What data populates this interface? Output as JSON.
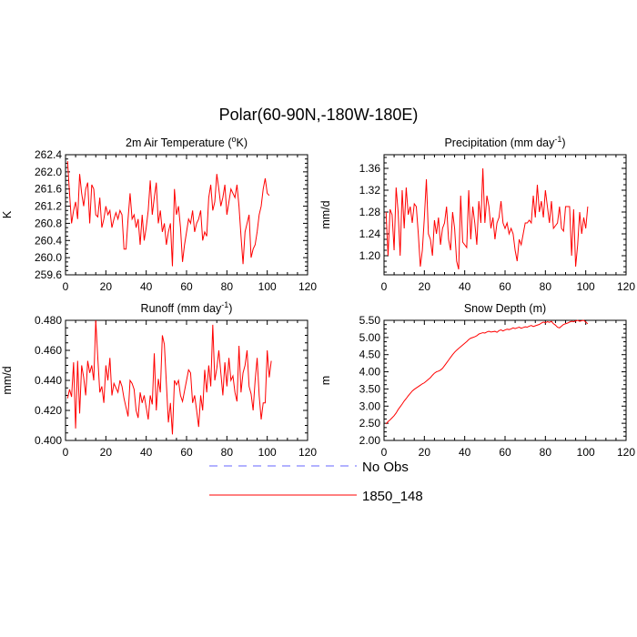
{
  "title": "Polar(60-90N,-180W-180E)",
  "legend": [
    {
      "label": "No Obs",
      "color": "#6666ff",
      "dashed": true
    },
    {
      "label": "1850_148",
      "color": "#ff0000",
      "dashed": false
    }
  ],
  "chart_data": [
    {
      "type": "line",
      "title": "2m Air Temperature (",
      "title_sup": "o",
      "title_tail": "K)",
      "ylabel": "K",
      "xlim": [
        0,
        120
      ],
      "ylim": [
        259.6,
        262.4
      ],
      "xticks": [
        "0",
        "20",
        "40",
        "60",
        "80",
        "100",
        "120"
      ],
      "yticks": [
        "259.6",
        "260.0",
        "260.4",
        "260.8",
        "261.2",
        "261.6",
        "262.0",
        "262.4"
      ],
      "series": [
        {
          "name": "1850_148",
          "color": "#ff0000",
          "x_start": 1,
          "values": [
            262.25,
            261.5,
            260.8,
            261.1,
            261.3,
            260.9,
            261.95,
            261.5,
            261.2,
            261.6,
            261.75,
            260.8,
            261.7,
            261.6,
            261.0,
            260.95,
            261.4,
            260.7,
            260.9,
            261.2,
            261.0,
            261.1,
            260.7,
            260.9,
            261.05,
            260.9,
            261.1,
            261.0,
            260.2,
            260.2,
            260.9,
            261.5,
            260.9,
            261.0,
            260.7,
            260.9,
            260.3,
            261.0,
            260.4,
            260.7,
            261.1,
            261.8,
            261.0,
            261.4,
            261.75,
            260.8,
            261.1,
            260.6,
            260.8,
            260.3,
            260.6,
            260.8,
            259.8,
            261.6,
            261.0,
            261.2,
            260.7,
            259.9,
            260.3,
            260.6,
            260.9,
            260.8,
            261.1,
            260.6,
            260.8,
            260.9,
            261.1,
            260.4,
            260.6,
            260.5,
            261.4,
            261.7,
            261.1,
            261.3,
            261.95,
            261.6,
            261.2,
            261.4,
            261.7,
            261.0,
            261.3,
            261.6,
            261.5,
            261.4,
            261.7,
            261.2,
            260.5,
            259.85,
            260.6,
            260.8,
            261.0,
            260.0,
            260.2,
            260.3,
            260.6,
            261.0,
            261.2,
            261.6,
            261.85,
            261.5,
            261.45
          ]
        }
      ]
    },
    {
      "type": "line",
      "title": "Precipitation (mm day",
      "title_sup": "-1",
      "title_tail": ")",
      "ylabel": "mm/d",
      "xlim": [
        0,
        120
      ],
      "ylim": [
        1.165,
        1.385
      ],
      "xticks": [
        "0",
        "20",
        "40",
        "60",
        "80",
        "100",
        "120"
      ],
      "ytick_values": [
        1.2,
        1.24,
        1.28,
        1.32,
        1.36
      ],
      "yticks": [
        "1.20",
        "1.24",
        "1.28",
        "1.32",
        "1.36"
      ],
      "series": [
        {
          "name": "1850_148",
          "color": "#ff0000",
          "x_start": 1,
          "values": [
            1.28,
            1.2,
            1.285,
            1.275,
            1.21,
            1.325,
            1.28,
            1.2,
            1.32,
            1.25,
            1.325,
            1.275,
            1.29,
            1.26,
            1.295,
            1.29,
            1.24,
            1.18,
            1.21,
            1.27,
            1.34,
            1.24,
            1.23,
            1.2,
            1.265,
            1.24,
            1.27,
            1.22,
            1.25,
            1.26,
            1.29,
            1.23,
            1.21,
            1.28,
            1.25,
            1.19,
            1.175,
            1.31,
            1.225,
            1.22,
            1.215,
            1.32,
            1.23,
            1.29,
            1.26,
            1.22,
            1.3,
            1.26,
            1.36,
            1.26,
            1.31,
            1.29,
            1.25,
            1.27,
            1.23,
            1.26,
            1.27,
            1.3,
            1.26,
            1.25,
            1.26,
            1.24,
            1.25,
            1.24,
            1.21,
            1.19,
            1.23,
            1.22,
            1.24,
            1.26,
            1.26,
            1.265,
            1.26,
            1.31,
            1.27,
            1.33,
            1.28,
            1.3,
            1.27,
            1.32,
            1.29,
            1.26,
            1.3,
            1.25,
            1.255,
            1.26,
            1.29,
            1.25,
            1.245,
            1.29,
            1.29,
            1.29,
            1.2,
            1.285,
            1.18,
            1.22,
            1.28,
            1.24,
            1.27,
            1.25,
            1.29
          ]
        }
      ]
    },
    {
      "type": "line",
      "title": "Runoff (mm day",
      "title_sup": "-1",
      "title_tail": ")",
      "ylabel": "mm/d",
      "xlim": [
        0,
        120
      ],
      "ylim": [
        0.4,
        0.48
      ],
      "xticks": [
        "0",
        "20",
        "40",
        "60",
        "80",
        "100",
        "120"
      ],
      "yticks": [
        "0.400",
        "0.420",
        "0.440",
        "0.460",
        "0.480"
      ],
      "series": [
        {
          "name": "1850_148",
          "color": "#ff0000",
          "x_start": 1,
          "values": [
            0.428,
            0.434,
            0.429,
            0.452,
            0.408,
            0.453,
            0.418,
            0.45,
            0.442,
            0.43,
            0.453,
            0.445,
            0.45,
            0.44,
            0.48,
            0.455,
            0.432,
            0.436,
            0.425,
            0.45,
            0.44,
            0.455,
            0.43,
            0.438,
            0.435,
            0.432,
            0.44,
            0.436,
            0.428,
            0.422,
            0.416,
            0.44,
            0.438,
            0.434,
            0.42,
            0.415,
            0.432,
            0.425,
            0.43,
            0.422,
            0.414,
            0.43,
            0.424,
            0.458,
            0.42,
            0.441,
            0.432,
            0.47,
            0.464,
            0.438,
            0.412,
            0.425,
            0.404,
            0.44,
            0.437,
            0.44,
            0.43,
            0.426,
            0.433,
            0.44,
            0.447,
            0.445,
            0.425,
            0.43,
            0.42,
            0.409,
            0.43,
            0.42,
            0.447,
            0.432,
            0.45,
            0.436,
            0.477,
            0.44,
            0.448,
            0.46,
            0.445,
            0.43,
            0.452,
            0.436,
            0.455,
            0.44,
            0.443,
            0.432,
            0.426,
            0.463,
            0.432,
            0.445,
            0.45,
            0.46,
            0.436,
            0.431,
            0.42,
            0.44,
            0.455,
            0.43,
            0.414,
            0.425,
            0.425,
            0.46,
            0.442,
            0.453
          ]
        }
      ]
    },
    {
      "type": "line",
      "title": "Snow Depth (m)",
      "title_sup": "",
      "title_tail": "",
      "ylabel": "m",
      "xlim": [
        0,
        120
      ],
      "ylim": [
        2.0,
        5.5
      ],
      "xticks": [
        "0",
        "20",
        "40",
        "60",
        "80",
        "100",
        "120"
      ],
      "yticks": [
        "2.00",
        "2.50",
        "3.00",
        "3.50",
        "4.00",
        "4.50",
        "5.00",
        "5.50"
      ],
      "series": [
        {
          "name": "1850_148",
          "color": "#ff0000",
          "x_start": 1,
          "values": [
            2.48,
            2.55,
            2.6,
            2.66,
            2.72,
            2.8,
            2.9,
            2.98,
            3.06,
            3.15,
            3.22,
            3.3,
            3.37,
            3.44,
            3.49,
            3.53,
            3.57,
            3.61,
            3.65,
            3.68,
            3.73,
            3.78,
            3.83,
            3.9,
            3.96,
            4.0,
            4.02,
            4.05,
            4.1,
            4.18,
            4.26,
            4.34,
            4.42,
            4.5,
            4.57,
            4.63,
            4.68,
            4.73,
            4.78,
            4.83,
            4.88,
            4.94,
            4.98,
            5.0,
            5.02,
            5.05,
            5.1,
            5.12,
            5.14,
            5.13,
            5.16,
            5.18,
            5.16,
            5.17,
            5.18,
            5.15,
            5.2,
            5.22,
            5.19,
            5.22,
            5.24,
            5.23,
            5.25,
            5.28,
            5.26,
            5.28,
            5.3,
            5.27,
            5.29,
            5.31,
            5.3,
            5.33,
            5.35,
            5.32,
            5.34,
            5.36,
            5.38,
            5.42,
            5.45,
            5.43,
            5.46,
            5.44,
            5.47,
            5.4,
            5.36,
            5.3,
            5.28,
            5.33,
            5.38,
            5.4,
            5.42,
            5.45,
            5.47,
            5.46,
            5.48,
            5.5,
            5.47,
            5.49,
            5.5,
            5.45,
            5.4
          ]
        }
      ]
    }
  ]
}
